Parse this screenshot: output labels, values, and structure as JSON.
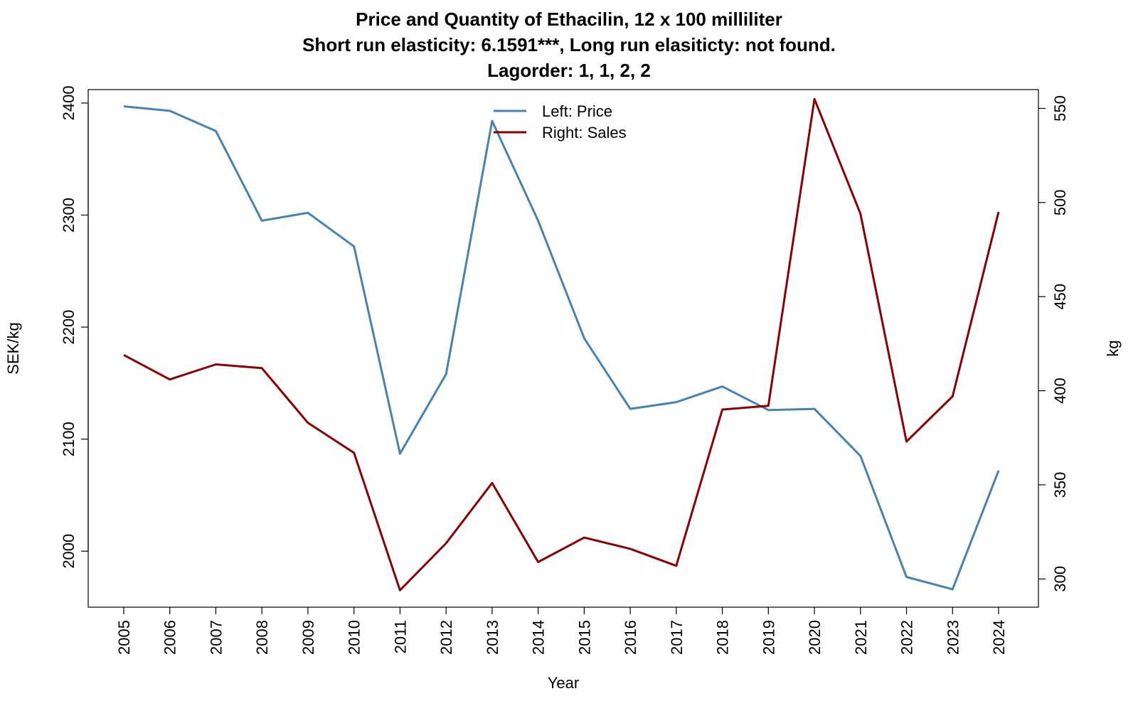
{
  "chart_data": {
    "type": "line",
    "title_lines": [
      "Price and Quantity of Ethacilin, 12 x 100 milliliter",
      "Short run elasticity: 6.1591***,   Long run elasiticty: not found.",
      "Lagorder: 1, 1, 2, 2"
    ],
    "xlabel": "Year",
    "ylabel_left": "SEK/kg",
    "ylabel_right": "kg",
    "x": [
      "2005",
      "2006",
      "2007",
      "2008",
      "2009",
      "2010",
      "2011",
      "2012",
      "2013",
      "2014",
      "2015",
      "2016",
      "2017",
      "2018",
      "2019",
      "2020",
      "2021",
      "2022",
      "2023",
      "2024"
    ],
    "ylim_left": [
      1950,
      2412
    ],
    "ylim_right": [
      285,
      560
    ],
    "yticks_left": [
      2000,
      2100,
      2200,
      2300,
      2400
    ],
    "yticks_right": [
      300,
      350,
      400,
      450,
      500,
      550
    ],
    "legend_position": "top-center",
    "series": [
      {
        "name": "Left: Price",
        "axis": "left",
        "color": "#4682B4",
        "values": [
          2397,
          2393,
          2375,
          2295,
          2302,
          2272,
          2087,
          2158,
          2384,
          2295,
          2190,
          2127,
          2133,
          2147,
          2126,
          2127,
          2085,
          1977,
          1966,
          2072
        ]
      },
      {
        "name": "Right: Sales",
        "axis": "right",
        "color": "#8B0000",
        "values": [
          419,
          406,
          414,
          412,
          383,
          367,
          294,
          319,
          351,
          309,
          322,
          316,
          307,
          390,
          392,
          555,
          494,
          373,
          397,
          495
        ]
      }
    ],
    "grid": false
  }
}
